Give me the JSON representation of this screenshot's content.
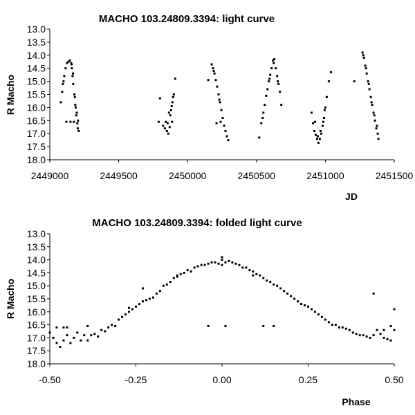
{
  "chart_data": [
    {
      "type": "scatter",
      "title": "MACHO 103.24809.3394: light curve",
      "xlabel": "JD",
      "ylabel": "R Macho",
      "xlim": [
        2449000,
        2451500
      ],
      "ylim": [
        13.0,
        18.0
      ],
      "y_inverted": true,
      "x_ticks": [
        "2449000",
        "2449500",
        "2450000",
        "2450500",
        "2451000",
        "2451500"
      ],
      "y_ticks": [
        "13.0",
        "13.5",
        "14.0",
        "14.5",
        "15.0",
        "15.5",
        "16.0",
        "16.5",
        "17.0",
        "17.5",
        "18.0"
      ],
      "grid": false,
      "legend": "none",
      "marker_color": "#000000",
      "series": [
        {
          "points": [
            [
              2449080,
              15.8
            ],
            [
              2449095,
              15.1
            ],
            [
              2449105,
              14.8
            ],
            [
              2449115,
              14.5
            ],
            [
              2449125,
              14.3
            ],
            [
              2449135,
              14.25
            ],
            [
              2449145,
              14.2
            ],
            [
              2449155,
              14.3
            ],
            [
              2449160,
              14.5
            ],
            [
              2449165,
              14.8
            ],
            [
              2449170,
              15.1
            ],
            [
              2449178,
              15.5
            ],
            [
              2449185,
              15.9
            ],
            [
              2449192,
              16.3
            ],
            [
              2449200,
              16.6
            ],
            [
              2449210,
              16.9
            ],
            [
              2449120,
              16.55
            ],
            [
              2449150,
              16.55
            ],
            [
              2449175,
              16.55
            ],
            [
              2449205,
              16.5
            ],
            [
              2449090,
              15.4
            ],
            [
              2449100,
              15.0
            ],
            [
              2449168,
              14.7
            ],
            [
              2449182,
              15.6
            ],
            [
              2449196,
              16.2
            ],
            [
              2449203,
              16.8
            ],
            [
              2449188,
              16.0
            ],
            [
              2449158,
              14.35
            ],
            [
              2449790,
              16.55
            ],
            [
              2449800,
              15.65
            ],
            [
              2449835,
              16.8
            ],
            [
              2449850,
              16.9
            ],
            [
              2449860,
              17.0
            ],
            [
              2449870,
              16.75
            ],
            [
              2449875,
              16.3
            ],
            [
              2449880,
              16.1
            ],
            [
              2449885,
              15.95
            ],
            [
              2449890,
              15.8
            ],
            [
              2449895,
              15.6
            ],
            [
              2449900,
              15.5
            ],
            [
              2449910,
              14.9
            ],
            [
              2449842,
              16.55
            ],
            [
              2449855,
              16.6
            ],
            [
              2449822,
              16.7
            ],
            [
              2449865,
              16.2
            ],
            [
              2449887,
              16.55
            ],
            [
              2450150,
              14.95
            ],
            [
              2450175,
              14.35
            ],
            [
              2450185,
              14.5
            ],
            [
              2450195,
              14.7
            ],
            [
              2450205,
              14.95
            ],
            [
              2450215,
              15.2
            ],
            [
              2450225,
              15.5
            ],
            [
              2450235,
              15.8
            ],
            [
              2450245,
              16.1
            ],
            [
              2450255,
              16.4
            ],
            [
              2450265,
              16.7
            ],
            [
              2450275,
              16.9
            ],
            [
              2450285,
              17.1
            ],
            [
              2450295,
              17.25
            ],
            [
              2450210,
              16.6
            ],
            [
              2450240,
              16.55
            ],
            [
              2450190,
              14.6
            ],
            [
              2450230,
              15.7
            ],
            [
              2450520,
              17.15
            ],
            [
              2450535,
              16.6
            ],
            [
              2450550,
              16.2
            ],
            [
              2450560,
              15.9
            ],
            [
              2450570,
              15.55
            ],
            [
              2450580,
              15.3
            ],
            [
              2450590,
              15.0
            ],
            [
              2450600,
              14.75
            ],
            [
              2450610,
              14.5
            ],
            [
              2450620,
              14.2
            ],
            [
              2450630,
              14.15
            ],
            [
              2450640,
              14.5
            ],
            [
              2450650,
              14.8
            ],
            [
              2450660,
              15.1
            ],
            [
              2450670,
              15.4
            ],
            [
              2450680,
              15.9
            ],
            [
              2450545,
              16.4
            ],
            [
              2450595,
              14.9
            ],
            [
              2450625,
              14.3
            ],
            [
              2450655,
              15.0
            ],
            [
              2450900,
              16.2
            ],
            [
              2450910,
              16.6
            ],
            [
              2450920,
              16.9
            ],
            [
              2450930,
              17.05
            ],
            [
              2450940,
              17.2
            ],
            [
              2450950,
              17.35
            ],
            [
              2450960,
              17.2
            ],
            [
              2450970,
              17.0
            ],
            [
              2450980,
              16.7
            ],
            [
              2450990,
              16.4
            ],
            [
              2451000,
              16.0
            ],
            [
              2451010,
              15.6
            ],
            [
              2451025,
              15.0
            ],
            [
              2451040,
              14.65
            ],
            [
              2450925,
              16.55
            ],
            [
              2450945,
              17.1
            ],
            [
              2450965,
              16.9
            ],
            [
              2450985,
              16.55
            ],
            [
              2450995,
              16.1
            ],
            [
              2451210,
              15.0
            ],
            [
              2451270,
              13.9
            ],
            [
              2451280,
              14.1
            ],
            [
              2451290,
              14.4
            ],
            [
              2451300,
              14.7
            ],
            [
              2451310,
              15.0
            ],
            [
              2451320,
              15.3
            ],
            [
              2451330,
              15.6
            ],
            [
              2451340,
              15.9
            ],
            [
              2451350,
              16.2
            ],
            [
              2451360,
              16.5
            ],
            [
              2451370,
              16.8
            ],
            [
              2451380,
              17.0
            ],
            [
              2451385,
              17.2
            ],
            [
              2451275,
              14.0
            ],
            [
              2451295,
              14.5
            ],
            [
              2451315,
              15.1
            ],
            [
              2451335,
              15.8
            ],
            [
              2451355,
              16.3
            ],
            [
              2451375,
              16.7
            ]
          ]
        }
      ]
    },
    {
      "type": "scatter",
      "title": "MACHO 103.24809.3394: folded light curve",
      "xlabel": "Phase",
      "ylabel": "R Macho",
      "xlim": [
        -0.5,
        0.5
      ],
      "ylim": [
        13.0,
        18.0
      ],
      "y_inverted": true,
      "x_ticks": [
        "-0.50",
        "-0.25",
        "0.00",
        "0.25",
        "0.50"
      ],
      "y_ticks": [
        "13.0",
        "13.5",
        "14.0",
        "14.5",
        "15.0",
        "15.5",
        "16.0",
        "16.5",
        "17.0",
        "17.5",
        "18.0"
      ],
      "grid": false,
      "legend": "none",
      "marker_color": "#000000",
      "series": [
        {
          "points": [
            [
              -0.5,
              16.8
            ],
            [
              -0.49,
              17.0
            ],
            [
              -0.48,
              17.2
            ],
            [
              -0.47,
              17.35
            ],
            [
              -0.46,
              17.1
            ],
            [
              -0.45,
              16.9
            ],
            [
              -0.44,
              17.2
            ],
            [
              -0.43,
              17.0
            ],
            [
              -0.42,
              16.8
            ],
            [
              -0.41,
              17.1
            ],
            [
              -0.4,
              16.9
            ],
            [
              -0.39,
              17.1
            ],
            [
              -0.38,
              16.9
            ],
            [
              -0.37,
              16.85
            ],
            [
              -0.36,
              16.95
            ],
            [
              -0.35,
              16.7
            ],
            [
              -0.34,
              16.75
            ],
            [
              -0.33,
              16.6
            ],
            [
              -0.32,
              16.5
            ],
            [
              -0.31,
              16.55
            ],
            [
              -0.3,
              16.3
            ],
            [
              -0.29,
              16.2
            ],
            [
              -0.28,
              16.1
            ],
            [
              -0.27,
              16.0
            ],
            [
              -0.26,
              15.9
            ],
            [
              -0.25,
              15.8
            ],
            [
              -0.24,
              15.7
            ],
            [
              -0.23,
              15.6
            ],
            [
              -0.22,
              15.55
            ],
            [
              -0.21,
              15.5
            ],
            [
              -0.2,
              15.45
            ],
            [
              -0.19,
              15.3
            ],
            [
              -0.18,
              15.2
            ],
            [
              -0.17,
              15.0
            ],
            [
              -0.16,
              14.95
            ],
            [
              -0.15,
              14.85
            ],
            [
              -0.14,
              14.7
            ],
            [
              -0.13,
              14.65
            ],
            [
              -0.12,
              14.55
            ],
            [
              -0.11,
              14.5
            ],
            [
              -0.1,
              14.4
            ],
            [
              -0.09,
              14.45
            ],
            [
              -0.08,
              14.3
            ],
            [
              -0.07,
              14.25
            ],
            [
              -0.06,
              14.2
            ],
            [
              -0.05,
              14.2
            ],
            [
              -0.04,
              14.15
            ],
            [
              -0.03,
              14.1
            ],
            [
              -0.02,
              14.1
            ],
            [
              -0.01,
              14.15
            ],
            [
              0.0,
              14.2
            ],
            [
              0.0,
              14.0
            ],
            [
              0.0,
              13.9
            ],
            [
              0.01,
              14.1
            ],
            [
              0.02,
              14.05
            ],
            [
              0.03,
              14.1
            ],
            [
              0.04,
              14.15
            ],
            [
              0.05,
              14.2
            ],
            [
              0.06,
              14.3
            ],
            [
              0.07,
              14.3
            ],
            [
              0.08,
              14.4
            ],
            [
              0.09,
              14.45
            ],
            [
              0.1,
              14.55
            ],
            [
              0.11,
              14.6
            ],
            [
              0.12,
              14.7
            ],
            [
              0.13,
              14.8
            ],
            [
              0.14,
              14.85
            ],
            [
              0.15,
              14.95
            ],
            [
              0.16,
              15.0
            ],
            [
              0.17,
              15.1
            ],
            [
              0.18,
              15.2
            ],
            [
              0.19,
              15.3
            ],
            [
              0.2,
              15.4
            ],
            [
              0.21,
              15.5
            ],
            [
              0.22,
              15.6
            ],
            [
              0.23,
              15.7
            ],
            [
              0.24,
              15.75
            ],
            [
              0.25,
              15.8
            ],
            [
              0.26,
              15.9
            ],
            [
              0.27,
              16.0
            ],
            [
              0.28,
              16.1
            ],
            [
              0.29,
              16.2
            ],
            [
              0.3,
              16.3
            ],
            [
              0.31,
              16.4
            ],
            [
              0.32,
              16.5
            ],
            [
              0.33,
              16.5
            ],
            [
              0.34,
              16.6
            ],
            [
              0.35,
              16.6
            ],
            [
              0.36,
              16.65
            ],
            [
              0.37,
              16.7
            ],
            [
              0.38,
              16.8
            ],
            [
              0.39,
              16.85
            ],
            [
              0.4,
              16.9
            ],
            [
              0.41,
              16.9
            ],
            [
              0.42,
              16.95
            ],
            [
              0.43,
              17.0
            ],
            [
              0.44,
              16.9
            ],
            [
              0.45,
              16.7
            ],
            [
              0.46,
              16.85
            ],
            [
              0.47,
              17.0
            ],
            [
              0.48,
              17.05
            ],
            [
              0.49,
              17.1
            ],
            [
              0.5,
              16.7
            ],
            [
              -0.04,
              16.55
            ],
            [
              0.01,
              16.55
            ],
            [
              0.12,
              16.55
            ],
            [
              0.15,
              16.55
            ],
            [
              -0.46,
              16.6
            ],
            [
              -0.48,
              16.6
            ],
            [
              -0.39,
              16.55
            ],
            [
              -0.45,
              16.6
            ],
            [
              0.44,
              15.3
            ],
            [
              0.5,
              15.9
            ],
            [
              -0.23,
              15.1
            ],
            [
              -0.27,
              15.85
            ],
            [
              0.49,
              16.55
            ],
            [
              0.47,
              16.7
            ],
            [
              -0.13,
              14.6
            ],
            [
              0.09,
              14.6
            ]
          ]
        }
      ]
    }
  ]
}
